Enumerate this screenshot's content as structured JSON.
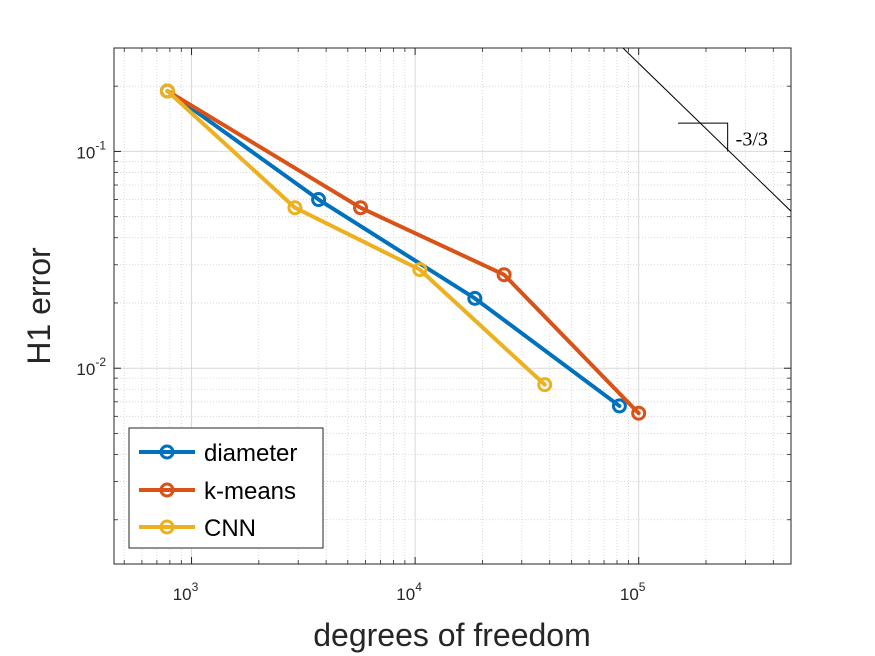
{
  "chart_data": {
    "type": "line",
    "scale": {
      "x": "log",
      "y": "log"
    },
    "xlabel": "degrees of freedom",
    "ylabel": "H1 error",
    "xlim": [
      450,
      480000
    ],
    "ylim": [
      0.00125,
      0.3
    ],
    "grid": true,
    "x_ticks": [
      {
        "value": 1000,
        "base": "10",
        "exp": "3"
      },
      {
        "value": 10000,
        "base": "10",
        "exp": "4"
      },
      {
        "value": 100000,
        "base": "10",
        "exp": "5"
      }
    ],
    "y_ticks": [
      {
        "value": 0.1,
        "base": "10",
        "exp": "-1"
      },
      {
        "value": 0.01,
        "base": "10",
        "exp": "-2"
      }
    ],
    "series": [
      {
        "name": "diameter",
        "color": "#0072BD",
        "x": [
          780,
          3700,
          18500,
          82000
        ],
        "y": [
          0.19,
          0.06,
          0.021,
          0.0067
        ]
      },
      {
        "name": "k-means",
        "color": "#D95319",
        "x": [
          780,
          5700,
          25000,
          100000
        ],
        "y": [
          0.19,
          0.055,
          0.027,
          0.0062
        ]
      },
      {
        "name": "CNN",
        "color": "#EDB120",
        "x": [
          780,
          2900,
          10500,
          38000
        ],
        "y": [
          0.19,
          0.055,
          0.0285,
          0.0084
        ]
      }
    ],
    "legend_position": "bottom-left",
    "reference_slope": {
      "label": "-3/3",
      "line": {
        "x": [
          75000,
          480000
        ],
        "y": [
          0.34,
          0.053
        ]
      },
      "triangle": {
        "x": [
          150000,
          250000
        ],
        "y_top": 0.135,
        "y_bottom": 0.0999
      }
    }
  }
}
